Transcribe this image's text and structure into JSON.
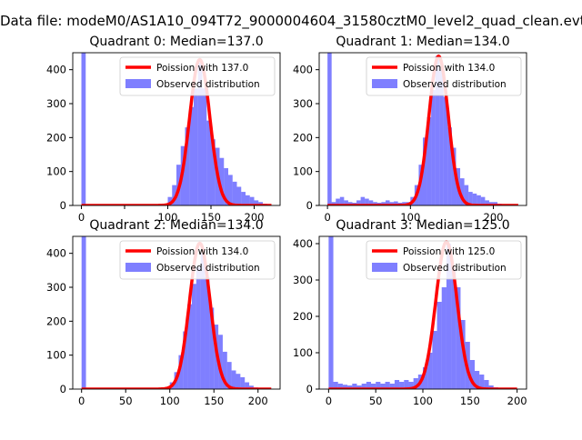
{
  "figure": {
    "suptitle": "Data file: modeM0/AS1A10_094T72_9000004604_31580cztM0_level2_quad_clean.evt"
  },
  "chart_data": [
    {
      "type": "bar",
      "title": "Quadrant 0: Median=137.0",
      "xlim": [
        -10,
        230
      ],
      "ylim": [
        0,
        450
      ],
      "xticks": [
        0,
        50,
        100,
        150,
        200
      ],
      "xtick_labels": [
        "0",
        "",
        "100",
        "150",
        "200"
      ],
      "yticks": [
        0,
        100,
        200,
        300,
        400
      ],
      "bin_width": 5,
      "bins": [
        [
          0,
          450
        ],
        [
          95,
          5
        ],
        [
          100,
          25
        ],
        [
          105,
          60
        ],
        [
          110,
          120
        ],
        [
          115,
          175
        ],
        [
          120,
          230
        ],
        [
          125,
          290
        ],
        [
          130,
          345
        ],
        [
          135,
          420
        ],
        [
          140,
          345
        ],
        [
          145,
          250
        ],
        [
          150,
          195
        ],
        [
          155,
          170
        ],
        [
          160,
          140
        ],
        [
          165,
          110
        ],
        [
          170,
          90
        ],
        [
          175,
          70
        ],
        [
          180,
          55
        ],
        [
          185,
          40
        ],
        [
          190,
          30
        ],
        [
          195,
          25
        ],
        [
          200,
          15
        ],
        [
          205,
          10
        ],
        [
          210,
          5
        ],
        [
          215,
          3
        ]
      ],
      "poisson_mean": 137.0,
      "poisson_peak": 430,
      "legend": [
        "Poission with 137.0",
        "Observed distribution"
      ]
    },
    {
      "type": "bar",
      "title": "Quadrant 1: Median=134.0",
      "xlim": [
        -10,
        240
      ],
      "ylim": [
        0,
        450
      ],
      "xticks": [
        0,
        100,
        200
      ],
      "xtick_labels": [
        "0",
        "100",
        "200"
      ],
      "yticks": [
        0,
        100,
        200,
        300,
        400
      ],
      "bin_width": 5,
      "bins": [
        [
          0,
          450
        ],
        [
          5,
          10
        ],
        [
          10,
          20
        ],
        [
          15,
          25
        ],
        [
          20,
          15
        ],
        [
          25,
          10
        ],
        [
          30,
          8
        ],
        [
          35,
          15
        ],
        [
          40,
          25
        ],
        [
          45,
          20
        ],
        [
          50,
          15
        ],
        [
          55,
          10
        ],
        [
          60,
          8
        ],
        [
          65,
          10
        ],
        [
          70,
          15
        ],
        [
          75,
          10
        ],
        [
          80,
          12
        ],
        [
          85,
          8
        ],
        [
          90,
          10
        ],
        [
          95,
          10
        ],
        [
          100,
          25
        ],
        [
          105,
          60
        ],
        [
          110,
          120
        ],
        [
          115,
          200
        ],
        [
          120,
          260
        ],
        [
          125,
          340
        ],
        [
          130,
          440
        ],
        [
          135,
          400
        ],
        [
          140,
          320
        ],
        [
          145,
          230
        ],
        [
          150,
          170
        ],
        [
          155,
          110
        ],
        [
          160,
          80
        ],
        [
          165,
          60
        ],
        [
          170,
          40
        ],
        [
          175,
          35
        ],
        [
          180,
          30
        ],
        [
          185,
          25
        ],
        [
          190,
          15
        ],
        [
          195,
          10
        ],
        [
          200,
          10
        ],
        [
          205,
          5
        ],
        [
          210,
          3
        ],
        [
          215,
          2
        ]
      ],
      "poisson_mean": 134.0,
      "poisson_peak": 440,
      "legend": [
        "Poission with 134.0",
        "Observed distribution"
      ]
    },
    {
      "type": "bar",
      "title": "Quadrant 2: Median=134.0",
      "xlim": [
        -10,
        225
      ],
      "ylim": [
        0,
        450
      ],
      "xticks": [
        0,
        50,
        100,
        150,
        200
      ],
      "xtick_labels": [
        "0",
        "50",
        "100",
        "150",
        "200"
      ],
      "yticks": [
        0,
        100,
        200,
        300,
        400
      ],
      "bin_width": 5,
      "bins": [
        [
          0,
          450
        ],
        [
          95,
          3
        ],
        [
          100,
          20
        ],
        [
          105,
          50
        ],
        [
          110,
          100
        ],
        [
          115,
          170
        ],
        [
          120,
          250
        ],
        [
          125,
          310
        ],
        [
          130,
          360
        ],
        [
          135,
          400
        ],
        [
          140,
          330
        ],
        [
          145,
          240
        ],
        [
          150,
          190
        ],
        [
          155,
          160
        ],
        [
          160,
          110
        ],
        [
          165,
          80
        ],
        [
          170,
          55
        ],
        [
          175,
          45
        ],
        [
          180,
          35
        ],
        [
          185,
          20
        ],
        [
          190,
          10
        ],
        [
          195,
          5
        ],
        [
          200,
          3
        ]
      ],
      "poisson_mean": 134.0,
      "poisson_peak": 430,
      "legend": [
        "Poission with 134.0",
        "Observed distribution"
      ]
    },
    {
      "type": "bar",
      "title": "Quadrant 3: Median=125.0",
      "xlim": [
        -10,
        210
      ],
      "ylim": [
        0,
        420
      ],
      "xticks": [
        0,
        50,
        100,
        150,
        200
      ],
      "xtick_labels": [
        "0",
        "50",
        "100",
        "150",
        "200"
      ],
      "yticks": [
        0,
        100,
        200,
        300,
        400
      ],
      "bin_width": 5,
      "bins": [
        [
          0,
          420
        ],
        [
          5,
          20
        ],
        [
          10,
          15
        ],
        [
          15,
          12
        ],
        [
          20,
          10
        ],
        [
          25,
          15
        ],
        [
          30,
          10
        ],
        [
          35,
          15
        ],
        [
          40,
          20
        ],
        [
          45,
          15
        ],
        [
          50,
          20
        ],
        [
          55,
          15
        ],
        [
          60,
          20
        ],
        [
          65,
          15
        ],
        [
          70,
          25
        ],
        [
          75,
          20
        ],
        [
          80,
          25
        ],
        [
          85,
          20
        ],
        [
          90,
          30
        ],
        [
          95,
          40
        ],
        [
          100,
          60
        ],
        [
          105,
          100
        ],
        [
          110,
          160
        ],
        [
          115,
          240
        ],
        [
          120,
          280
        ],
        [
          125,
          400
        ],
        [
          130,
          330
        ],
        [
          135,
          280
        ],
        [
          140,
          190
        ],
        [
          145,
          130
        ],
        [
          150,
          80
        ],
        [
          155,
          50
        ],
        [
          160,
          40
        ],
        [
          165,
          25
        ],
        [
          170,
          10
        ],
        [
          175,
          5
        ],
        [
          180,
          3
        ],
        [
          185,
          2
        ]
      ],
      "poisson_mean": 125.0,
      "poisson_peak": 405,
      "legend": [
        "Poission with 125.0",
        "Observed distribution"
      ]
    }
  ]
}
